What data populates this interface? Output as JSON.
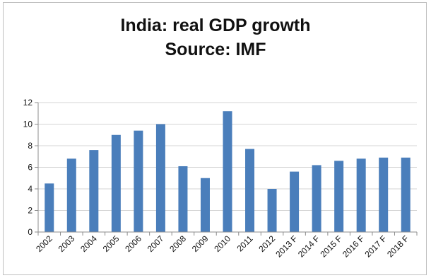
{
  "chart_data": {
    "type": "bar",
    "title": "India: real GDP growth",
    "subtitle": "Source: IMF",
    "xlabel": "",
    "ylabel": "",
    "categories": [
      "2002",
      "2003",
      "2004",
      "2005",
      "2006",
      "2007",
      "2008",
      "2009",
      "2010",
      "2011",
      "2012",
      "2013 F",
      "2014 F",
      "2015 F",
      "2016 F",
      "2017 F",
      "2018 F"
    ],
    "values": [
      4.5,
      6.8,
      7.6,
      9.0,
      9.4,
      10.0,
      6.1,
      5.0,
      11.2,
      7.7,
      4.0,
      5.6,
      6.2,
      6.6,
      6.8,
      6.9,
      6.9
    ],
    "ylim": [
      0,
      12
    ],
    "yticks": [
      0,
      2,
      4,
      6,
      8,
      10,
      12
    ],
    "grid": "horizontal",
    "legend": "none",
    "bar_color": "#4a7ebb"
  }
}
